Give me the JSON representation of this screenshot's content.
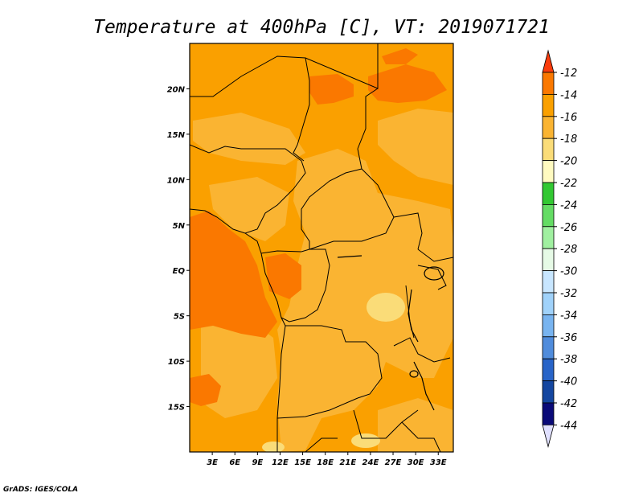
{
  "chart_data": {
    "type": "heatmap",
    "title": "Temperature at 400hPa [C], VT: 2019071721",
    "credit": "GrADS: IGES/COLA",
    "x_ticks": [
      "3E",
      "6E",
      "9E",
      "12E",
      "15E",
      "18E",
      "21E",
      "24E",
      "27E",
      "30E",
      "33E"
    ],
    "y_ticks": [
      "20N",
      "15N",
      "10N",
      "5N",
      "EQ",
      "5S",
      "10S",
      "15S"
    ],
    "xlim": [
      0,
      35
    ],
    "ylim": [
      -20,
      25
    ],
    "colorbar": {
      "levels": [
        "-12",
        "-14",
        "-16",
        "-18",
        "-20",
        "-22",
        "-24",
        "-26",
        "-28",
        "-30",
        "-32",
        "-34",
        "-36",
        "-38",
        "-40",
        "-42",
        "-44"
      ],
      "colors": [
        "#fa3c0c",
        "#fa7800",
        "#faa000",
        "#fab432",
        "#fadc78",
        "#fffac0",
        "#32c832",
        "#64dc64",
        "#a0f0a0",
        "#e6fae6",
        "#c8e6ff",
        "#a0d2fa",
        "#78b4f0",
        "#508cdc",
        "#2864c8",
        "#1446a0",
        "#0a0a78"
      ],
      "top_color": "#fa3c0c",
      "bottom_color": "#e0e0ff"
    },
    "field_colors": {
      "base": "#faa000",
      "warm": "#fa7800",
      "cool": "#fab432",
      "coolest": "#fadc78"
    }
  }
}
